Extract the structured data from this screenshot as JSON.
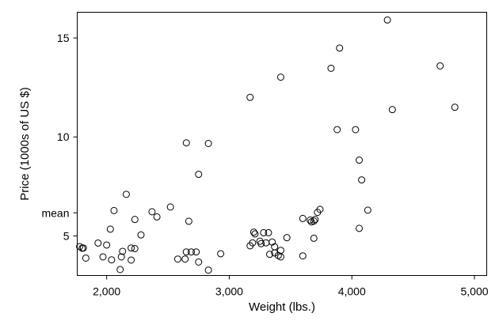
{
  "chart_data": {
    "type": "scatter",
    "title": "",
    "xlabel": "Weight (lbs.)",
    "ylabel": "Price (1000s of US $)",
    "xlim": [
      1760,
      5100
    ],
    "ylim": [
      3000,
      16300
    ],
    "x_ticks": [
      {
        "value": 2000,
        "label": "2,000"
      },
      {
        "value": 3000,
        "label": "3,000"
      },
      {
        "value": 4000,
        "label": "4,000"
      },
      {
        "value": 5000,
        "label": "5,000"
      }
    ],
    "y_ticks": [
      {
        "value": 5000,
        "label": "5"
      },
      {
        "value": 6165,
        "label": "mean"
      },
      {
        "value": 10000,
        "label": "10"
      },
      {
        "value": 15000,
        "label": "15"
      }
    ],
    "grid": false,
    "legend": "none",
    "marker_color": "#000000",
    "points": [
      {
        "x": 1780,
        "y": 4460
      },
      {
        "x": 1810,
        "y": 4390
      },
      {
        "x": 1800,
        "y": 4380
      },
      {
        "x": 1830,
        "y": 3880
      },
      {
        "x": 1930,
        "y": 4640
      },
      {
        "x": 1970,
        "y": 3940
      },
      {
        "x": 2000,
        "y": 4540
      },
      {
        "x": 2040,
        "y": 3790
      },
      {
        "x": 2030,
        "y": 5340
      },
      {
        "x": 2060,
        "y": 6280
      },
      {
        "x": 2110,
        "y": 3300
      },
      {
        "x": 2120,
        "y": 3940
      },
      {
        "x": 2130,
        "y": 4220
      },
      {
        "x": 2160,
        "y": 7100
      },
      {
        "x": 2200,
        "y": 3780
      },
      {
        "x": 2200,
        "y": 4390
      },
      {
        "x": 2230,
        "y": 4360
      },
      {
        "x": 2230,
        "y": 5830
      },
      {
        "x": 2280,
        "y": 5050
      },
      {
        "x": 2370,
        "y": 6220
      },
      {
        "x": 2410,
        "y": 5960
      },
      {
        "x": 2520,
        "y": 6460
      },
      {
        "x": 2580,
        "y": 3830
      },
      {
        "x": 2640,
        "y": 3830
      },
      {
        "x": 2650,
        "y": 4190
      },
      {
        "x": 2650,
        "y": 9700
      },
      {
        "x": 2670,
        "y": 5740
      },
      {
        "x": 2690,
        "y": 4190
      },
      {
        "x": 2730,
        "y": 4190
      },
      {
        "x": 2750,
        "y": 3680
      },
      {
        "x": 2750,
        "y": 8110
      },
      {
        "x": 2830,
        "y": 9670
      },
      {
        "x": 2830,
        "y": 3270
      },
      {
        "x": 2930,
        "y": 4100
      },
      {
        "x": 3170,
        "y": 4500
      },
      {
        "x": 3170,
        "y": 12000
      },
      {
        "x": 3190,
        "y": 4650
      },
      {
        "x": 3200,
        "y": 5190
      },
      {
        "x": 3210,
        "y": 5100
      },
      {
        "x": 3250,
        "y": 4730
      },
      {
        "x": 3260,
        "y": 4610
      },
      {
        "x": 3280,
        "y": 5160
      },
      {
        "x": 3300,
        "y": 4650
      },
      {
        "x": 3320,
        "y": 5160
      },
      {
        "x": 3330,
        "y": 4070
      },
      {
        "x": 3350,
        "y": 4690
      },
      {
        "x": 3370,
        "y": 4140
      },
      {
        "x": 3370,
        "y": 4450
      },
      {
        "x": 3400,
        "y": 4010
      },
      {
        "x": 3420,
        "y": 4270
      },
      {
        "x": 3420,
        "y": 3940
      },
      {
        "x": 3420,
        "y": 13020
      },
      {
        "x": 3470,
        "y": 4910
      },
      {
        "x": 3600,
        "y": 3990
      },
      {
        "x": 3600,
        "y": 5880
      },
      {
        "x": 3660,
        "y": 5800
      },
      {
        "x": 3670,
        "y": 5710
      },
      {
        "x": 3690,
        "y": 5750
      },
      {
        "x": 3690,
        "y": 4880
      },
      {
        "x": 3700,
        "y": 5830
      },
      {
        "x": 3720,
        "y": 6190
      },
      {
        "x": 3740,
        "y": 6340
      },
      {
        "x": 3830,
        "y": 13470
      },
      {
        "x": 3880,
        "y": 10370
      },
      {
        "x": 3900,
        "y": 14490
      },
      {
        "x": 4030,
        "y": 10370
      },
      {
        "x": 4060,
        "y": 8830
      },
      {
        "x": 4060,
        "y": 5380
      },
      {
        "x": 4080,
        "y": 7830
      },
      {
        "x": 4130,
        "y": 6300
      },
      {
        "x": 4290,
        "y": 15910
      },
      {
        "x": 4330,
        "y": 11380
      },
      {
        "x": 4720,
        "y": 13590
      },
      {
        "x": 4840,
        "y": 11500
      }
    ]
  }
}
